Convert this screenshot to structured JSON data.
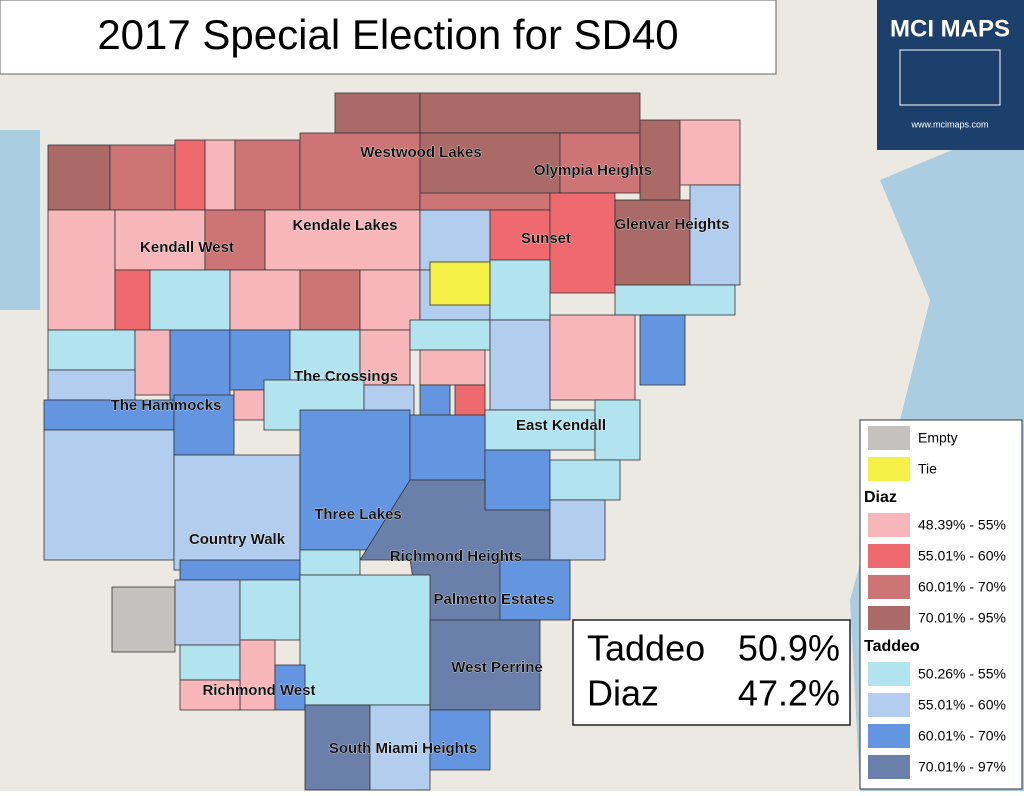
{
  "title": "2017 Special Election for SD40",
  "logo": {
    "name": "MCI MAPS",
    "url": "www.mcimaps.com"
  },
  "places": [
    "Westwood Lakes",
    "Olympia Heights",
    "Kendall West",
    "Kendale Lakes",
    "Sunset",
    "Glenvar Heights",
    "The Crossings",
    "The Hammocks",
    "East Kendall",
    "Three Lakes",
    "Country Walk",
    "Richmond Heights",
    "Palmetto Estates",
    "West Perrine",
    "Richmond West",
    "South Miami Heights"
  ],
  "legend": {
    "items": [
      {
        "label": "Empty",
        "color": "#c4c2be"
      },
      {
        "label": "Tie",
        "color": "#f5f046"
      }
    ],
    "groups": [
      {
        "name": "Diaz",
        "items": [
          {
            "label": "48.39% - 55%",
            "color": "#f7b6b9"
          },
          {
            "label": "55.01% - 60%",
            "color": "#ee6a6e"
          },
          {
            "label": "60.01% - 70%",
            "color": "#cd7477"
          },
          {
            "label": "70.01% - 95%",
            "color": "#a96a68"
          }
        ]
      },
      {
        "name": "Taddeo",
        "items": [
          {
            "label": "50.26% - 55%",
            "color": "#b2e4ef"
          },
          {
            "label": "55.01% - 60%",
            "color": "#b3cdee"
          },
          {
            "label": "60.01% - 70%",
            "color": "#6495e0"
          },
          {
            "label": "70.01% - 97%",
            "color": "#6b7fab"
          }
        ]
      }
    ]
  },
  "results": [
    {
      "name": "Taddeo",
      "share": "50.9%"
    },
    {
      "name": "Diaz",
      "share": "47.2%"
    }
  ]
}
